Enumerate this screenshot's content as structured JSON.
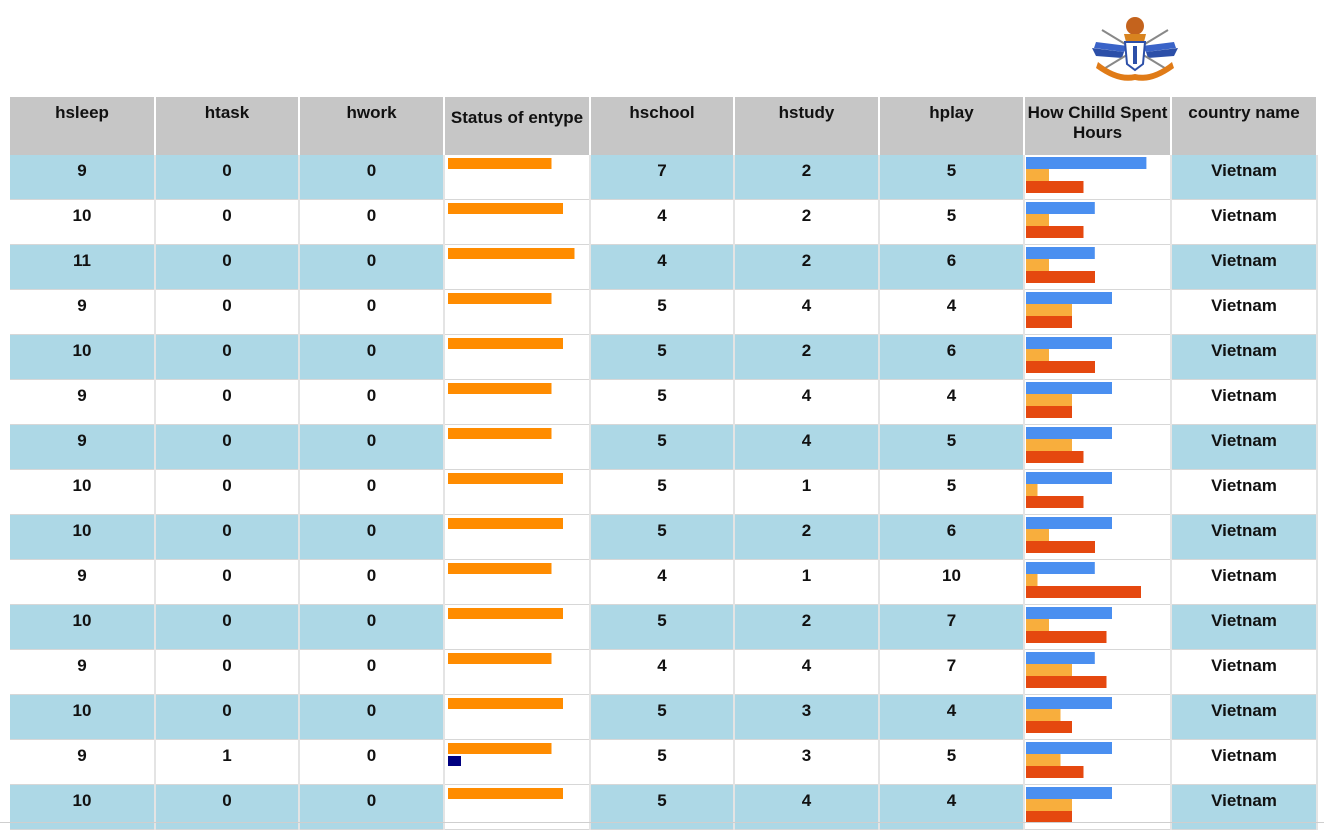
{
  "colors": {
    "row_alt": "#add8e6",
    "header_bg": "#c6c6c6",
    "status_bar": "#ff8c00",
    "status_marker": "#000080",
    "hours_blue": "#4a8ff0",
    "hours_yellow": "#f8ae3d",
    "hours_red": "#e5480f"
  },
  "logo": {
    "icon": "military-crest-emblem"
  },
  "table": {
    "headers": [
      "hsleep",
      "htask",
      "hwork",
      "Status of entype",
      "hschool",
      "hstudy",
      "hplay",
      "How Chilld Spent Hours",
      "country name"
    ],
    "rows": [
      {
        "hsleep": "9",
        "htask": "0",
        "hwork": "0",
        "hschool": "7",
        "hstudy": "2",
        "hplay": "5",
        "country": "Vietnam"
      },
      {
        "hsleep": "10",
        "htask": "0",
        "hwork": "0",
        "hschool": "4",
        "hstudy": "2",
        "hplay": "5",
        "country": "Vietnam"
      },
      {
        "hsleep": "11",
        "htask": "0",
        "hwork": "0",
        "hschool": "4",
        "hstudy": "2",
        "hplay": "6",
        "country": "Vietnam"
      },
      {
        "hsleep": "9",
        "htask": "0",
        "hwork": "0",
        "hschool": "5",
        "hstudy": "4",
        "hplay": "4",
        "country": "Vietnam"
      },
      {
        "hsleep": "10",
        "htask": "0",
        "hwork": "0",
        "hschool": "5",
        "hstudy": "2",
        "hplay": "6",
        "country": "Vietnam"
      },
      {
        "hsleep": "9",
        "htask": "0",
        "hwork": "0",
        "hschool": "5",
        "hstudy": "4",
        "hplay": "4",
        "country": "Vietnam"
      },
      {
        "hsleep": "9",
        "htask": "0",
        "hwork": "0",
        "hschool": "5",
        "hstudy": "4",
        "hplay": "5",
        "country": "Vietnam"
      },
      {
        "hsleep": "10",
        "htask": "0",
        "hwork": "0",
        "hschool": "5",
        "hstudy": "1",
        "hplay": "5",
        "country": "Vietnam"
      },
      {
        "hsleep": "10",
        "htask": "0",
        "hwork": "0",
        "hschool": "5",
        "hstudy": "2",
        "hplay": "6",
        "country": "Vietnam"
      },
      {
        "hsleep": "9",
        "htask": "0",
        "hwork": "0",
        "hschool": "4",
        "hstudy": "1",
        "hplay": "10",
        "country": "Vietnam"
      },
      {
        "hsleep": "10",
        "htask": "0",
        "hwork": "0",
        "hschool": "5",
        "hstudy": "2",
        "hplay": "7",
        "country": "Vietnam"
      },
      {
        "hsleep": "9",
        "htask": "0",
        "hwork": "0",
        "hschool": "4",
        "hstudy": "4",
        "hplay": "7",
        "country": "Vietnam"
      },
      {
        "hsleep": "10",
        "htask": "0",
        "hwork": "0",
        "hschool": "5",
        "hstudy": "3",
        "hplay": "4",
        "country": "Vietnam"
      },
      {
        "hsleep": "9",
        "htask": "1",
        "hwork": "0",
        "hschool": "5",
        "hstudy": "3",
        "hplay": "5",
        "country": "Vietnam"
      },
      {
        "hsleep": "10",
        "htask": "0",
        "hwork": "0",
        "hschool": "5",
        "hstudy": "4",
        "hplay": "4",
        "country": "Vietnam"
      }
    ]
  }
}
